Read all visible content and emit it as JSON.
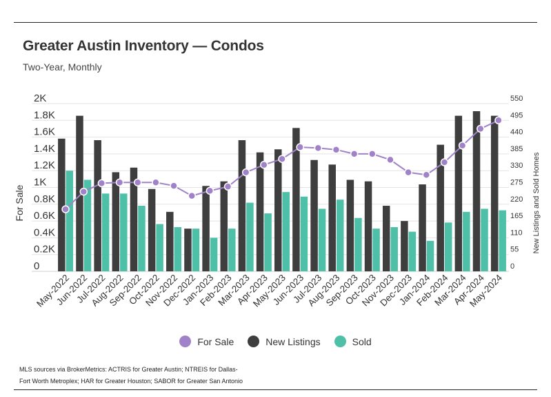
{
  "header": {
    "title": "Greater Austin Inventory — Condos",
    "subtitle": "Two-Year, Monthly"
  },
  "legend": {
    "items": [
      {
        "label": "For Sale",
        "color": "#a082c8"
      },
      {
        "label": "New Listings",
        "color": "#3e3e3e"
      },
      {
        "label": "Sold",
        "color": "#4fc0a8"
      }
    ]
  },
  "source": {
    "text": "MLS sources via BrokerMetrics: ACTRIS for Greater Austin; NTREIS for Dallas-Fort Worth Metroplex; HAR for Greater Houston; SABOR for Greater San Antonio"
  },
  "chart_data": {
    "type": "bar",
    "title": "Greater Austin Inventory — Condos",
    "subtitle": "Two-Year, Monthly",
    "categories": [
      "May-2022",
      "Jun-2022",
      "Jul-2022",
      "Aug-2022",
      "Sep-2022",
      "Oct-2022",
      "Nov-2022",
      "Dec-2022",
      "Jan-2023",
      "Feb-2023",
      "Mar-2023",
      "Apr-2023",
      "May-2023",
      "Jun-2023",
      "Jul-2023",
      "Aug-2023",
      "Sep-2023",
      "Oct-2023",
      "Nov-2023",
      "Dec-2023",
      "Jan-2024",
      "Feb-2024",
      "Mar-2024",
      "Apr-2024",
      "May-2024"
    ],
    "left_axis": {
      "label": "For Sale",
      "ticks": [
        "0",
        "0.2K",
        "0.4K",
        "0.6K",
        "0.8K",
        "1K",
        "1.2K",
        "1.4K",
        "1.6K",
        "1.8K",
        "2K"
      ],
      "ylim": [
        0,
        2000
      ]
    },
    "right_axis": {
      "label": "New Listings and Sold Homes",
      "ticks": [
        "0",
        "55",
        "110",
        "165",
        "220",
        "275",
        "330",
        "385",
        "440",
        "495",
        "550"
      ],
      "ylim": [
        0,
        550
      ]
    },
    "series": [
      {
        "name": "For Sale",
        "type": "line",
        "axis": "left",
        "color": "#a082c8",
        "values": [
          740,
          950,
          1050,
          1060,
          1060,
          1060,
          1020,
          900,
          960,
          1010,
          1180,
          1270,
          1340,
          1480,
          1470,
          1450,
          1400,
          1400,
          1330,
          1180,
          1150,
          1300,
          1500,
          1700,
          1800
        ]
      },
      {
        "name": "New Listings",
        "type": "bar",
        "axis": "right",
        "color": "#3e3e3e",
        "values": [
          435,
          510,
          430,
          325,
          340,
          270,
          195,
          140,
          280,
          295,
          430,
          390,
          400,
          470,
          365,
          350,
          300,
          295,
          215,
          165,
          285,
          415,
          510,
          525,
          510
        ]
      },
      {
        "name": "Sold",
        "type": "bar",
        "axis": "right",
        "color": "#4fc0a8",
        "values": [
          330,
          300,
          255,
          255,
          215,
          155,
          145,
          140,
          110,
          140,
          225,
          190,
          260,
          245,
          205,
          235,
          175,
          140,
          145,
          130,
          100,
          160,
          195,
          205,
          200
        ]
      }
    ],
    "grid": true,
    "legend_position": "bottom"
  }
}
